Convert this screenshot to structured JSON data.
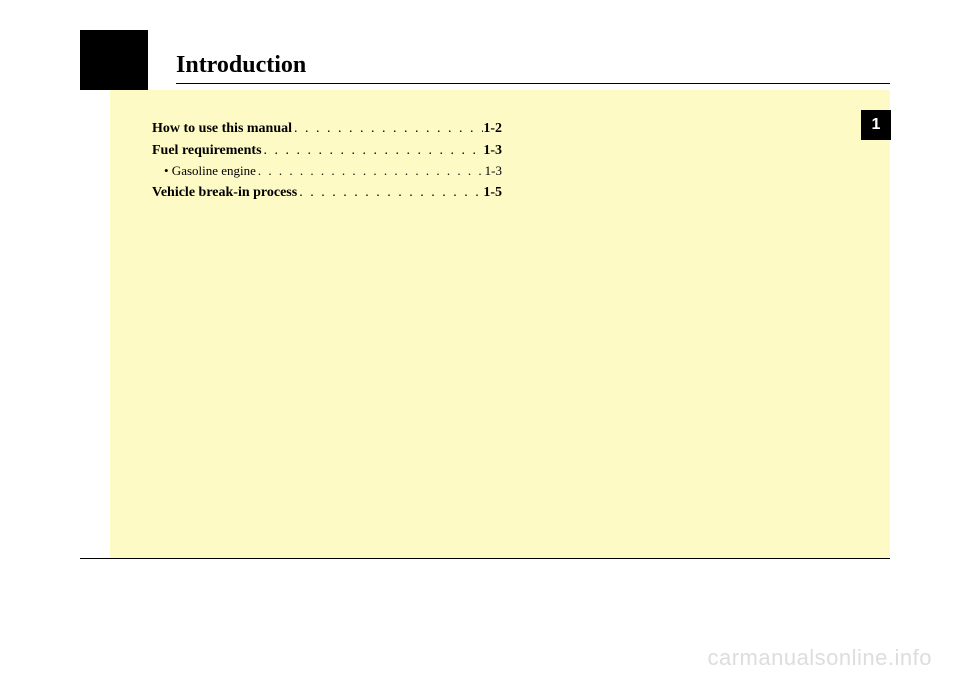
{
  "title": "Introduction",
  "side_tab": "1",
  "toc": [
    {
      "label": "How to use this manual",
      "page": "1-2",
      "sub": false,
      "dots": ". . . . . . . . . . . . . . . . . . . . . ."
    },
    {
      "label": "Fuel requirements",
      "page": "1-3",
      "sub": false,
      "dots": ". . . . . . . . . . . . . . . . . . . . . . . . . ."
    },
    {
      "label": "• Gasoline engine",
      "page": "1-3",
      "sub": true,
      "dots": ". . . . . . . . . . . . . . . . . . . . . . . . . . . . . . ."
    },
    {
      "label": "Vehicle break-in process",
      "page": "1-5",
      "sub": false,
      "dots": ". . . . . . . . . . . . . . . . . . . . ."
    }
  ],
  "watermark": "carmanualsonline.info",
  "colors": {
    "panel_bg": "#fdfac5",
    "black": "#000000",
    "watermark": "#dddddd"
  }
}
